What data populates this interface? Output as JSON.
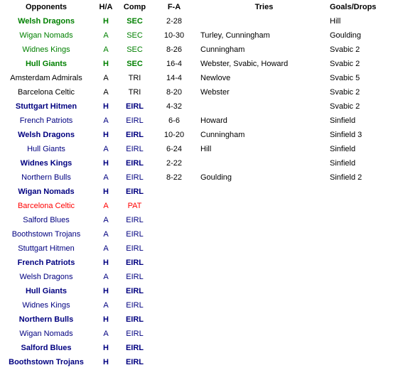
{
  "headers": {
    "opponents": "Opponents",
    "ha": "H/A",
    "comp": "Comp",
    "fa": "F-A",
    "tries": "Tries",
    "goals": "Goals/Drops"
  },
  "colors": {
    "green": "#008000",
    "navy": "#000080",
    "red": "#ff0000",
    "black": "#000000"
  },
  "rows": [
    {
      "opponent": "Welsh Dragons",
      "ha": "H",
      "comp": "SEC",
      "fa": "2-28",
      "tries": "",
      "goals": "Hill",
      "color": "green",
      "bold": true
    },
    {
      "opponent": "Wigan Nomads",
      "ha": "A",
      "comp": "SEC",
      "fa": "10-30",
      "tries": "Turley, Cunningham",
      "goals": "Goulding",
      "color": "green",
      "bold": false
    },
    {
      "opponent": "Widnes Kings",
      "ha": "A",
      "comp": "SEC",
      "fa": "8-26",
      "tries": "Cunningham",
      "goals": "Svabic 2",
      "color": "green",
      "bold": false
    },
    {
      "opponent": "Hull Giants",
      "ha": "H",
      "comp": "SEC",
      "fa": "16-4",
      "tries": "Webster, Svabic, Howard",
      "goals": "Svabic 2",
      "color": "green",
      "bold": true
    },
    {
      "opponent": "Amsterdam Admirals",
      "ha": "A",
      "comp": "TRI",
      "fa": "14-4",
      "tries": "Newlove",
      "goals": "Svabic 5",
      "color": "black",
      "bold": false
    },
    {
      "opponent": "Barcelona Celtic",
      "ha": "A",
      "comp": "TRI",
      "fa": "8-20",
      "tries": "Webster",
      "goals": "Svabic 2",
      "color": "black",
      "bold": false
    },
    {
      "opponent": "Stuttgart Hitmen",
      "ha": "H",
      "comp": "EIRL",
      "fa": "4-32",
      "tries": "",
      "goals": "Svabic 2",
      "color": "navy",
      "bold": true
    },
    {
      "opponent": "French Patriots",
      "ha": "A",
      "comp": "EIRL",
      "fa": "6-6",
      "tries": "Howard",
      "goals": "Sinfield",
      "color": "navy",
      "bold": false
    },
    {
      "opponent": "Welsh Dragons",
      "ha": "H",
      "comp": "EIRL",
      "fa": "10-20",
      "tries": "Cunningham",
      "goals": "Sinfield 3",
      "color": "navy",
      "bold": true
    },
    {
      "opponent": "Hull Giants",
      "ha": "A",
      "comp": "EIRL",
      "fa": "6-24",
      "tries": "Hill",
      "goals": "Sinfield",
      "color": "navy",
      "bold": false
    },
    {
      "opponent": "Widnes Kings",
      "ha": "H",
      "comp": "EIRL",
      "fa": "2-22",
      "tries": "",
      "goals": "Sinfield",
      "color": "navy",
      "bold": true
    },
    {
      "opponent": "Northern Bulls",
      "ha": "A",
      "comp": "EIRL",
      "fa": "8-22",
      "tries": "Goulding",
      "goals": "Sinfield 2",
      "color": "navy",
      "bold": false
    },
    {
      "opponent": "Wigan Nomads",
      "ha": "H",
      "comp": "EIRL",
      "fa": "",
      "tries": "",
      "goals": "",
      "color": "navy",
      "bold": true
    },
    {
      "opponent": "Barcelona Celtic",
      "ha": "A",
      "comp": "PAT",
      "fa": "",
      "tries": "",
      "goals": "",
      "color": "red",
      "bold": false
    },
    {
      "opponent": "Salford Blues",
      "ha": "A",
      "comp": "EIRL",
      "fa": "",
      "tries": "",
      "goals": "",
      "color": "navy",
      "bold": false
    },
    {
      "opponent": "Boothstown Trojans",
      "ha": "A",
      "comp": "EIRL",
      "fa": "",
      "tries": "",
      "goals": "",
      "color": "navy",
      "bold": false
    },
    {
      "opponent": "Stuttgart Hitmen",
      "ha": "A",
      "comp": "EIRL",
      "fa": "",
      "tries": "",
      "goals": "",
      "color": "navy",
      "bold": false
    },
    {
      "opponent": "French Patriots",
      "ha": "H",
      "comp": "EIRL",
      "fa": "",
      "tries": "",
      "goals": "",
      "color": "navy",
      "bold": true
    },
    {
      "opponent": "Welsh Dragons",
      "ha": "A",
      "comp": "EIRL",
      "fa": "",
      "tries": "",
      "goals": "",
      "color": "navy",
      "bold": false
    },
    {
      "opponent": "Hull Giants",
      "ha": "H",
      "comp": "EIRL",
      "fa": "",
      "tries": "",
      "goals": "",
      "color": "navy",
      "bold": true
    },
    {
      "opponent": "Widnes Kings",
      "ha": "A",
      "comp": "EIRL",
      "fa": "",
      "tries": "",
      "goals": "",
      "color": "navy",
      "bold": false
    },
    {
      "opponent": "Northern Bulls",
      "ha": "H",
      "comp": "EIRL",
      "fa": "",
      "tries": "",
      "goals": "",
      "color": "navy",
      "bold": true
    },
    {
      "opponent": "Wigan Nomads",
      "ha": "A",
      "comp": "EIRL",
      "fa": "",
      "tries": "",
      "goals": "",
      "color": "navy",
      "bold": false
    },
    {
      "opponent": "Salford Blues",
      "ha": "H",
      "comp": "EIRL",
      "fa": "",
      "tries": "",
      "goals": "",
      "color": "navy",
      "bold": true
    },
    {
      "opponent": "Boothstown Trojans",
      "ha": "H",
      "comp": "EIRL",
      "fa": "",
      "tries": "",
      "goals": "",
      "color": "navy",
      "bold": true
    }
  ]
}
